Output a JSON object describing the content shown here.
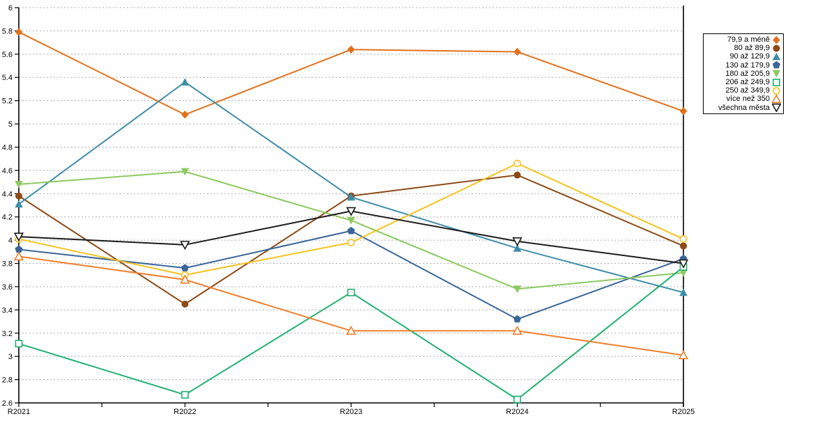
{
  "chart_data": {
    "type": "line",
    "title": "",
    "xlabel": "",
    "ylabel": "",
    "categories": [
      "R2021",
      "R2022",
      "R2023",
      "R2024",
      "R2025"
    ],
    "ylim": [
      2.6,
      6.0
    ],
    "ytick_step": 0.2,
    "ytick_labels": [
      "2.6",
      "2.8",
      "3",
      "3.2",
      "3.4",
      "3.6",
      "3.8",
      "4",
      "4.2",
      "4.4",
      "4.6",
      "4.8",
      "5",
      "5.2",
      "5.4",
      "5.6",
      "5.8",
      "6"
    ],
    "grid": "horizontal-dashed",
    "grid_color": "#ababab",
    "axis_color": "#000000",
    "legend_position": "right-top",
    "right_boundary_line": true,
    "series": [
      {
        "name": "79,9 a méně",
        "color": "#E2711B",
        "marker": "diamond",
        "values": [
          5.79,
          5.08,
          5.64,
          5.62,
          5.11
        ]
      },
      {
        "name": "80 až 89,9",
        "color": "#8C4A16",
        "marker": "circle",
        "values": [
          4.38,
          3.45,
          4.38,
          4.56,
          3.95
        ]
      },
      {
        "name": "90 až 129,9",
        "color": "#3E8DA7",
        "marker": "triangle-up",
        "values": [
          4.31,
          5.36,
          4.37,
          3.93,
          3.55
        ]
      },
      {
        "name": "130 až 179,9",
        "color": "#3A6598",
        "marker": "pentagon",
        "values": [
          3.92,
          3.76,
          4.08,
          3.32,
          3.84
        ]
      },
      {
        "name": "180 až 205,9",
        "color": "#8CC95F",
        "marker": "triangle-down",
        "values": [
          4.48,
          4.59,
          4.17,
          3.58,
          3.72
        ]
      },
      {
        "name": "206 až 249,9",
        "color": "#21B171",
        "marker": "square-open",
        "values": [
          3.11,
          2.67,
          3.55,
          2.63,
          3.77
        ]
      },
      {
        "name": "250 až 349,9",
        "color": "#F5C31D",
        "marker": "circle-open",
        "values": [
          4.01,
          3.7,
          3.98,
          4.66,
          4.01
        ]
      },
      {
        "name": "více než 350",
        "color": "#F07E2B",
        "marker": "triangle-up-open",
        "values": [
          3.86,
          3.66,
          3.22,
          3.22,
          3.01
        ]
      },
      {
        "name": "všechna města",
        "color": "#1B1B1B",
        "marker": "triangle-down-open",
        "values": [
          4.03,
          3.96,
          4.25,
          3.99,
          3.8
        ]
      }
    ]
  }
}
